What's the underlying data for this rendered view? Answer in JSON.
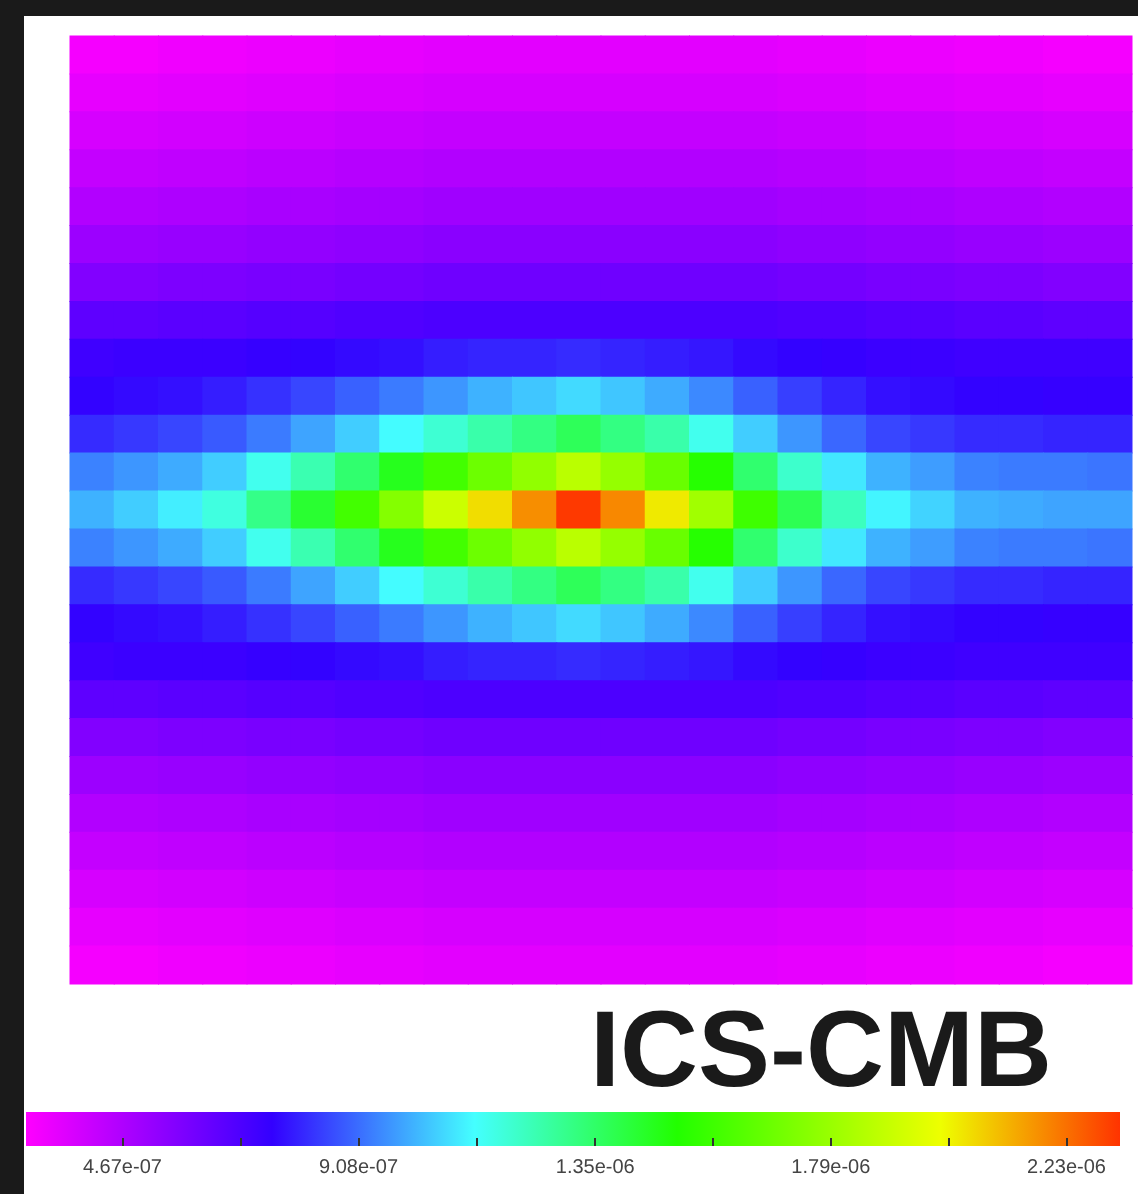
{
  "chart_data": {
    "type": "heatmap",
    "categories": [
      null,
      null,
      null,
      null,
      null,
      null,
      null,
      null,
      null,
      null,
      null,
      null,
      null,
      null,
      null,
      null,
      null,
      null,
      null,
      null,
      null,
      null,
      null,
      null
    ],
    "y_categories": [
      null,
      null,
      null,
      null,
      null,
      null,
      null,
      null,
      null,
      null,
      null,
      null,
      null,
      null,
      null,
      null,
      null,
      null,
      null,
      null,
      null,
      null,
      null,
      null,
      null
    ],
    "cells": [
      [
        3.1e-07,
        3.1e-07,
        3.2e-07,
        3.2e-07,
        3.3e-07,
        3.3e-07,
        3.4e-07,
        3.4e-07,
        3.5e-07,
        3.5e-07,
        3.5e-07,
        3.5e-07,
        3.5e-07,
        3.5e-07,
        3.5e-07,
        3.5e-07,
        3.4e-07,
        3.4e-07,
        3.3e-07,
        3.3e-07,
        3.2e-07,
        3.2e-07,
        3.1e-07,
        3.1e-07
      ],
      [
        3.4e-07,
        3.4e-07,
        3.5e-07,
        3.5e-07,
        3.6e-07,
        3.6e-07,
        3.7e-07,
        3.7e-07,
        3.8e-07,
        3.8e-07,
        3.8e-07,
        3.8e-07,
        3.8e-07,
        3.8e-07,
        3.8e-07,
        3.8e-07,
        3.7e-07,
        3.7e-07,
        3.6e-07,
        3.6e-07,
        3.5e-07,
        3.5e-07,
        3.4e-07,
        3.4e-07
      ],
      [
        3.8e-07,
        3.8e-07,
        3.9e-07,
        3.9e-07,
        4e-07,
        4e-07,
        4.1e-07,
        4.1e-07,
        4.2e-07,
        4.2e-07,
        4.2e-07,
        4.2e-07,
        4.2e-07,
        4.2e-07,
        4.2e-07,
        4.2e-07,
        4.1e-07,
        4.1e-07,
        4e-07,
        4e-07,
        3.9e-07,
        3.9e-07,
        3.8e-07,
        3.8e-07
      ],
      [
        4.2e-07,
        4.2e-07,
        4.3e-07,
        4.3e-07,
        4.4e-07,
        4.4e-07,
        4.5e-07,
        4.5e-07,
        4.6e-07,
        4.6e-07,
        4.6e-07,
        4.6e-07,
        4.6e-07,
        4.6e-07,
        4.6e-07,
        4.6e-07,
        4.5e-07,
        4.5e-07,
        4.4e-07,
        4.4e-07,
        4.3e-07,
        4.3e-07,
        4.2e-07,
        4.2e-07
      ],
      [
        4.6e-07,
        4.6e-07,
        4.7e-07,
        4.7e-07,
        4.8e-07,
        4.8e-07,
        4.9e-07,
        4.9e-07,
        5e-07,
        5e-07,
        5e-07,
        5e-07,
        5e-07,
        5e-07,
        5e-07,
        5e-07,
        4.9e-07,
        4.9e-07,
        4.8e-07,
        4.8e-07,
        4.7e-07,
        4.7e-07,
        4.6e-07,
        4.6e-07
      ],
      [
        5.1e-07,
        5.1e-07,
        5.2e-07,
        5.2e-07,
        5.3e-07,
        5.3e-07,
        5.4e-07,
        5.4e-07,
        5.5e-07,
        5.5e-07,
        5.5e-07,
        5.5e-07,
        5.5e-07,
        5.5e-07,
        5.5e-07,
        5.5e-07,
        5.4e-07,
        5.4e-07,
        5.3e-07,
        5.3e-07,
        5.2e-07,
        5.2e-07,
        5.1e-07,
        5.1e-07
      ],
      [
        5.7e-07,
        5.7e-07,
        5.8e-07,
        5.8e-07,
        5.9e-07,
        5.9e-07,
        6e-07,
        6e-07,
        6.1e-07,
        6.1e-07,
        6.1e-07,
        6.1e-07,
        6.1e-07,
        6.1e-07,
        6.1e-07,
        6.1e-07,
        6e-07,
        6e-07,
        5.9e-07,
        5.9e-07,
        5.8e-07,
        5.8e-07,
        5.7e-07,
        5.7e-07
      ],
      [
        6.5e-07,
        6.5e-07,
        6.6e-07,
        6.6e-07,
        6.7e-07,
        6.7e-07,
        6.8e-07,
        6.8e-07,
        6.9e-07,
        6.9e-07,
        6.9e-07,
        6.9e-07,
        6.9e-07,
        6.9e-07,
        6.9e-07,
        6.9e-07,
        6.8e-07,
        6.8e-07,
        6.7e-07,
        6.7e-07,
        6.6e-07,
        6.6e-07,
        6.5e-07,
        6.5e-07
      ],
      [
        7.2e-07,
        7.3e-07,
        7.3e-07,
        7.3e-07,
        7.4e-07,
        7.5e-07,
        7.6e-07,
        7.7e-07,
        7.9e-07,
        8e-07,
        8e-07,
        8.1e-07,
        8e-07,
        7.9e-07,
        7.8e-07,
        7.6e-07,
        7.5e-07,
        7.4e-07,
        7.3e-07,
        7.3e-07,
        7.2e-07,
        7.2e-07,
        7.2e-07,
        7.2e-07
      ],
      [
        7.5e-07,
        7.6e-07,
        7.7e-07,
        7.9e-07,
        8.2e-07,
        8.5e-07,
        8.9e-07,
        9.3e-07,
        9.7e-07,
        1.01e-06,
        1.04e-06,
        1.07e-06,
        1.04e-06,
        1e-06,
        9.5e-07,
        8.9e-07,
        8.4e-07,
        8e-07,
        7.7e-07,
        7.6e-07,
        7.5e-07,
        7.5e-07,
        7.4e-07,
        7.4e-07
      ],
      [
        8.1e-07,
        8.3e-07,
        8.5e-07,
        8.8e-07,
        9.3e-07,
        9.9e-07,
        1.05e-06,
        1.12e-06,
        1.19e-06,
        1.25e-06,
        1.31e-06,
        1.37e-06,
        1.31e-06,
        1.25e-06,
        1.15e-06,
        1.05e-06,
        9.7e-07,
        9e-07,
        8.5e-07,
        8.3e-07,
        8.1e-07,
        8.1e-07,
        8e-07,
        8e-07
      ],
      [
        9.4e-07,
        9.7e-07,
        1e-06,
        1.05e-06,
        1.15e-06,
        1.24e-06,
        1.34e-06,
        1.46e-06,
        1.58e-06,
        1.68e-06,
        1.77e-06,
        1.87e-06,
        1.78e-06,
        1.67e-06,
        1.51e-06,
        1.34e-06,
        1.2e-06,
        1.09e-06,
        1.01e-06,
        9.8e-07,
        9.4e-07,
        9.3e-07,
        9.3e-07,
        9.2e-07
      ],
      [
        1.01e-06,
        1.05e-06,
        1.1e-06,
        1.17e-06,
        1.3e-06,
        1.43e-06,
        1.58e-06,
        1.74e-06,
        1.91e-06,
        2.05e-06,
        2.18e-06,
        2.32e-06,
        2.19e-06,
        2.03e-06,
        1.81e-06,
        1.57e-06,
        1.38e-06,
        1.22e-06,
        1.11e-06,
        1.06e-06,
        1.01e-06,
        1e-06,
        9.9e-07,
        9.9e-07
      ],
      [
        9.4e-07,
        9.7e-07,
        1e-06,
        1.05e-06,
        1.15e-06,
        1.24e-06,
        1.34e-06,
        1.46e-06,
        1.58e-06,
        1.68e-06,
        1.77e-06,
        1.87e-06,
        1.78e-06,
        1.67e-06,
        1.51e-06,
        1.34e-06,
        1.2e-06,
        1.09e-06,
        1.01e-06,
        9.8e-07,
        9.4e-07,
        9.3e-07,
        9.3e-07,
        9.2e-07
      ],
      [
        8.1e-07,
        8.3e-07,
        8.5e-07,
        8.8e-07,
        9.3e-07,
        9.9e-07,
        1.05e-06,
        1.12e-06,
        1.19e-06,
        1.25e-06,
        1.31e-06,
        1.37e-06,
        1.31e-06,
        1.25e-06,
        1.15e-06,
        1.05e-06,
        9.7e-07,
        9e-07,
        8.5e-07,
        8.3e-07,
        8.1e-07,
        8.1e-07,
        8e-07,
        8e-07
      ],
      [
        7.5e-07,
        7.6e-07,
        7.7e-07,
        7.9e-07,
        8.2e-07,
        8.5e-07,
        8.9e-07,
        9.3e-07,
        9.7e-07,
        1.01e-06,
        1.04e-06,
        1.07e-06,
        1.04e-06,
        1e-06,
        9.5e-07,
        8.9e-07,
        8.4e-07,
        8e-07,
        7.7e-07,
        7.6e-07,
        7.5e-07,
        7.5e-07,
        7.4e-07,
        7.4e-07
      ],
      [
        7.2e-07,
        7.3e-07,
        7.3e-07,
        7.3e-07,
        7.4e-07,
        7.5e-07,
        7.6e-07,
        7.7e-07,
        7.9e-07,
        8e-07,
        8e-07,
        8.1e-07,
        8e-07,
        7.9e-07,
        7.8e-07,
        7.6e-07,
        7.5e-07,
        7.4e-07,
        7.3e-07,
        7.3e-07,
        7.2e-07,
        7.2e-07,
        7.2e-07,
        7.2e-07
      ],
      [
        6.5e-07,
        6.5e-07,
        6.6e-07,
        6.6e-07,
        6.7e-07,
        6.7e-07,
        6.8e-07,
        6.8e-07,
        6.9e-07,
        6.9e-07,
        6.9e-07,
        6.9e-07,
        6.9e-07,
        6.9e-07,
        6.9e-07,
        6.9e-07,
        6.8e-07,
        6.8e-07,
        6.7e-07,
        6.7e-07,
        6.6e-07,
        6.6e-07,
        6.5e-07,
        6.5e-07
      ],
      [
        5.7e-07,
        5.7e-07,
        5.8e-07,
        5.8e-07,
        5.9e-07,
        5.9e-07,
        6e-07,
        6e-07,
        6.1e-07,
        6.1e-07,
        6.1e-07,
        6.1e-07,
        6.1e-07,
        6.1e-07,
        6.1e-07,
        6.1e-07,
        6e-07,
        6e-07,
        5.9e-07,
        5.9e-07,
        5.8e-07,
        5.8e-07,
        5.7e-07,
        5.7e-07
      ],
      [
        5.1e-07,
        5.1e-07,
        5.2e-07,
        5.2e-07,
        5.3e-07,
        5.3e-07,
        5.4e-07,
        5.4e-07,
        5.5e-07,
        5.5e-07,
        5.5e-07,
        5.5e-07,
        5.5e-07,
        5.5e-07,
        5.5e-07,
        5.5e-07,
        5.4e-07,
        5.4e-07,
        5.3e-07,
        5.3e-07,
        5.2e-07,
        5.2e-07,
        5.1e-07,
        5.1e-07
      ],
      [
        4.6e-07,
        4.6e-07,
        4.7e-07,
        4.7e-07,
        4.8e-07,
        4.8e-07,
        4.9e-07,
        4.9e-07,
        5e-07,
        5e-07,
        5e-07,
        5e-07,
        5e-07,
        5e-07,
        5e-07,
        5e-07,
        4.9e-07,
        4.9e-07,
        4.8e-07,
        4.8e-07,
        4.7e-07,
        4.7e-07,
        4.6e-07,
        4.6e-07
      ],
      [
        4.2e-07,
        4.2e-07,
        4.3e-07,
        4.3e-07,
        4.4e-07,
        4.4e-07,
        4.5e-07,
        4.5e-07,
        4.6e-07,
        4.6e-07,
        4.6e-07,
        4.6e-07,
        4.6e-07,
        4.6e-07,
        4.6e-07,
        4.6e-07,
        4.5e-07,
        4.5e-07,
        4.4e-07,
        4.4e-07,
        4.3e-07,
        4.3e-07,
        4.2e-07,
        4.2e-07
      ],
      [
        3.8e-07,
        3.8e-07,
        3.9e-07,
        3.9e-07,
        4e-07,
        4e-07,
        4.1e-07,
        4.1e-07,
        4.2e-07,
        4.2e-07,
        4.2e-07,
        4.2e-07,
        4.2e-07,
        4.2e-07,
        4.2e-07,
        4.2e-07,
        4.1e-07,
        4.1e-07,
        4e-07,
        4e-07,
        3.9e-07,
        3.9e-07,
        3.8e-07,
        3.8e-07
      ],
      [
        3.4e-07,
        3.4e-07,
        3.5e-07,
        3.5e-07,
        3.6e-07,
        3.6e-07,
        3.7e-07,
        3.7e-07,
        3.8e-07,
        3.8e-07,
        3.8e-07,
        3.8e-07,
        3.8e-07,
        3.8e-07,
        3.8e-07,
        3.8e-07,
        3.7e-07,
        3.7e-07,
        3.6e-07,
        3.6e-07,
        3.5e-07,
        3.5e-07,
        3.4e-07,
        3.4e-07
      ],
      [
        3.1e-07,
        3.1e-07,
        3.2e-07,
        3.2e-07,
        3.3e-07,
        3.3e-07,
        3.4e-07,
        3.4e-07,
        3.5e-07,
        3.5e-07,
        3.5e-07,
        3.5e-07,
        3.5e-07,
        3.5e-07,
        3.5e-07,
        3.5e-07,
        3.4e-07,
        3.4e-07,
        3.3e-07,
        3.3e-07,
        3.2e-07,
        3.2e-07,
        3.1e-07,
        3.1e-07
      ]
    ],
    "clim": [
      2.87e-07,
      2.33e-06
    ],
    "cticks": [
      {
        "value": 4.67e-07,
        "label": "4.67e-07"
      },
      {
        "value": 6.88e-07,
        "label": null
      },
      {
        "value": 9.08e-07,
        "label": "9.08e-07"
      },
      {
        "value": 1.13e-06,
        "label": null
      },
      {
        "value": 1.35e-06,
        "label": "1.35e-06"
      },
      {
        "value": 1.57e-06,
        "label": null
      },
      {
        "value": 1.79e-06,
        "label": "1.79e-06"
      },
      {
        "value": 2.01e-06,
        "label": null
      },
      {
        "value": 2.23e-06,
        "label": "2.23e-06"
      }
    ],
    "annotations": [
      "ICS-CMB"
    ]
  }
}
